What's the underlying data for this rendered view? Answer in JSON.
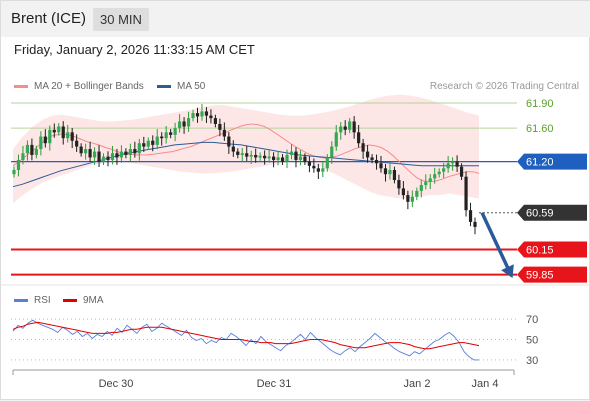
{
  "header": {
    "title": "Brent (ICE)",
    "timeframe": "30 MIN"
  },
  "datetime": "Friday, January 2, 2026 11:33:15 AM CET",
  "credit": "Research © 2026 Trading Central",
  "colors": {
    "resistance": "#5aa02c",
    "pivot": "#1f5fbf",
    "support": "#e8141c",
    "current": "#333333",
    "bollinger": "#f88b8b",
    "ma50": "#2c5b96",
    "rsi": "#5b7fd6",
    "rsi_ma": "#e00000",
    "arrow": "#2a5a9a"
  },
  "chart_data": [
    {
      "type": "candlestick",
      "ylim": [
        59.75,
        62.02
      ],
      "x_ticks": [
        "Dec 30",
        "Dec 31",
        "Jan 2",
        "Jan 4"
      ],
      "legend": [
        {
          "label": "MA 20 + Bollinger Bands",
          "color": "#f88b8b"
        },
        {
          "label": "MA 50",
          "color": "#2c5b96"
        }
      ],
      "levels": [
        {
          "value": 61.9,
          "label": "61.90",
          "kind": "resistance"
        },
        {
          "value": 61.6,
          "label": "61.60",
          "kind": "resistance"
        },
        {
          "value": 61.2,
          "label": "61.20",
          "kind": "pivot"
        },
        {
          "value": 60.59,
          "label": "60.59",
          "kind": "current"
        },
        {
          "value": 60.15,
          "label": "60.15",
          "kind": "support"
        },
        {
          "value": 59.85,
          "label": "59.85",
          "kind": "support"
        }
      ],
      "close_series": [
        61.1,
        61.22,
        61.3,
        61.4,
        61.28,
        61.35,
        61.5,
        61.42,
        61.58,
        61.55,
        61.62,
        61.48,
        61.55,
        61.45,
        61.38,
        61.3,
        61.35,
        61.25,
        61.32,
        61.2,
        61.26,
        61.22,
        61.3,
        61.25,
        61.32,
        61.28,
        61.35,
        61.3,
        61.42,
        61.38,
        61.45,
        61.4,
        61.5,
        61.48,
        61.55,
        61.52,
        61.6,
        61.68,
        61.62,
        61.72,
        61.78,
        61.74,
        61.8,
        61.75,
        61.72,
        61.65,
        61.58,
        61.5,
        61.38,
        61.32,
        61.28,
        61.3,
        61.26,
        61.28,
        61.25,
        61.27,
        61.24,
        61.26,
        61.22,
        61.25,
        61.2,
        61.28,
        61.32,
        61.22,
        61.26,
        61.2,
        61.15,
        61.12,
        61.08,
        61.12,
        61.25,
        61.38,
        61.55,
        61.62,
        61.58,
        61.68,
        61.55,
        61.42,
        61.32,
        61.25,
        61.22,
        61.18,
        61.12,
        61.05,
        61.1,
        60.98,
        60.88,
        60.8,
        60.72,
        60.78,
        60.85,
        60.92,
        60.96,
        61.0,
        61.05,
        61.08,
        61.12,
        61.18,
        61.2,
        61.14,
        61.02,
        60.62,
        60.48,
        60.42
      ],
      "ma20": [
        61.15,
        61.2,
        61.26,
        61.32,
        61.38,
        61.44,
        61.5,
        61.52,
        61.53,
        61.52,
        61.5,
        61.47,
        61.44,
        61.42,
        61.4,
        61.37,
        61.35,
        61.32,
        61.3,
        61.29,
        61.28,
        61.28,
        61.28,
        61.29,
        61.3,
        61.31,
        61.32,
        61.34,
        61.36,
        61.38,
        61.41,
        61.44,
        61.47,
        61.5,
        61.53,
        61.56,
        61.59,
        61.62,
        61.64,
        61.65,
        61.64,
        61.62,
        61.58,
        61.53,
        61.48,
        61.43,
        61.38,
        61.34,
        61.3,
        61.27,
        61.25,
        61.24,
        61.25,
        61.27,
        61.3,
        61.33,
        61.36,
        61.38,
        61.4,
        61.39,
        61.37,
        61.33,
        61.27,
        61.2,
        61.13,
        61.06,
        61.0,
        60.97,
        60.96,
        60.97,
        60.99,
        61.02,
        61.04,
        61.06,
        61.08,
        61.08,
        61.06
      ],
      "ma50": [
        60.9,
        60.93,
        60.97,
        61.01,
        61.05,
        61.09,
        61.12,
        61.15,
        61.18,
        61.21,
        61.24,
        61.27,
        61.3,
        61.32,
        61.34,
        61.36,
        61.38,
        61.4,
        61.41,
        61.42,
        61.43,
        61.43,
        61.42,
        61.41,
        61.4,
        61.38,
        61.36,
        61.34,
        61.32,
        61.3,
        61.28,
        61.27,
        61.26,
        61.25,
        61.24,
        61.23,
        61.22,
        61.21,
        61.2,
        61.19,
        61.18,
        61.17,
        61.16,
        61.15,
        61.15,
        61.15,
        61.15,
        61.15,
        61.15,
        61.15
      ],
      "bb_upper": [
        61.35,
        61.5,
        61.62,
        61.7,
        61.75,
        61.76,
        61.74,
        61.72,
        61.7,
        61.68,
        61.68,
        61.69,
        61.7,
        61.72,
        61.74,
        61.76,
        61.78,
        61.8,
        61.82,
        61.85,
        61.87,
        61.88,
        61.86,
        61.84,
        61.82,
        61.8,
        61.78,
        61.76,
        61.75,
        61.75,
        61.76,
        61.78,
        61.8,
        61.83,
        61.86,
        61.9,
        61.94,
        61.97,
        61.99,
        62.0,
        61.99,
        61.97,
        61.94,
        61.9,
        61.86,
        61.82,
        61.78,
        61.75
      ],
      "bb_lower": [
        60.7,
        60.8,
        60.88,
        60.95,
        61.0,
        61.04,
        61.08,
        61.12,
        61.16,
        61.18,
        61.2,
        61.2,
        61.18,
        61.16,
        61.14,
        61.12,
        61.1,
        61.08,
        61.07,
        61.06,
        61.06,
        61.07,
        61.08,
        61.1,
        61.12,
        61.14,
        61.16,
        61.18,
        61.2,
        61.2,
        61.18,
        61.14,
        61.08,
        61.02,
        60.96,
        60.9,
        60.84,
        60.8,
        60.78,
        60.76,
        60.76,
        60.78,
        60.8,
        60.8,
        60.82,
        60.8,
        60.78,
        60.76
      ],
      "forecast_arrow": {
        "from": 60.59,
        "to": 59.85
      }
    },
    {
      "type": "line",
      "ylim": [
        23,
        78
      ],
      "y_ticks": [
        70,
        50,
        30
      ],
      "legend": [
        {
          "label": "RSI",
          "color": "#5b7fd6"
        },
        {
          "label": "9MA",
          "color": "#e00000"
        }
      ],
      "rsi": [
        58,
        64,
        61,
        66,
        69,
        66,
        64,
        62,
        60,
        57,
        62,
        59,
        55,
        58,
        53,
        56,
        51,
        55,
        53,
        58,
        54,
        61,
        57,
        64,
        60,
        56,
        62,
        65,
        58,
        61,
        66,
        63,
        60,
        57,
        54,
        59,
        52,
        49,
        51,
        46,
        49,
        47,
        52,
        50,
        56,
        53,
        49,
        44,
        50,
        46,
        53,
        48,
        45,
        42,
        39,
        44,
        47,
        51,
        55,
        50,
        57,
        52,
        48,
        44,
        40,
        37,
        35,
        39,
        42,
        38,
        43,
        47,
        51,
        56,
        52,
        48,
        45,
        41,
        38,
        36,
        34,
        38,
        36,
        40,
        44,
        48,
        50,
        54,
        57,
        53,
        47,
        38,
        33,
        30,
        30
      ],
      "rsi_ma": [
        60,
        62,
        63,
        65,
        66,
        67,
        66,
        65,
        64,
        63,
        62,
        61,
        60,
        59,
        58,
        57,
        56,
        56,
        56,
        56,
        57,
        57,
        58,
        59,
        60,
        60,
        61,
        62,
        62,
        62,
        62,
        61,
        60,
        59,
        58,
        57,
        56,
        55,
        54,
        53,
        52,
        51,
        50,
        50,
        50,
        50,
        50,
        49,
        48,
        48,
        47,
        47,
        47,
        46,
        46,
        46,
        46,
        47,
        48,
        49,
        50,
        50,
        50,
        49,
        48,
        47,
        45,
        44,
        43,
        42,
        42,
        42,
        43,
        44,
        45,
        46,
        47,
        47,
        47,
        46,
        45,
        43,
        42,
        41,
        41,
        42,
        43,
        44,
        45,
        46,
        47,
        47,
        46,
        45,
        44
      ]
    }
  ]
}
